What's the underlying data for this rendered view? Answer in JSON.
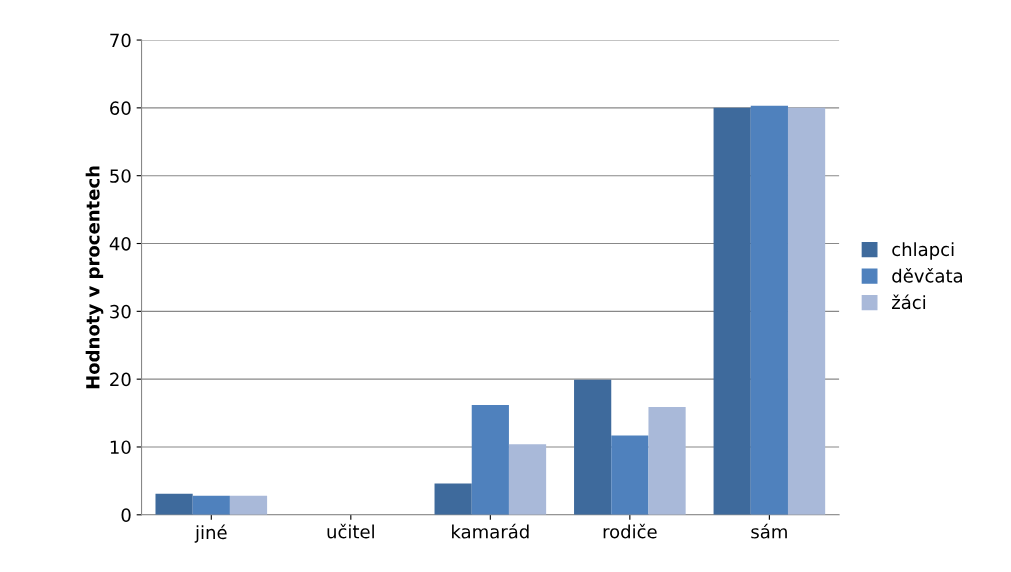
{
  "chart_data": {
    "type": "bar",
    "ylabel": "Hodnoty v procentech",
    "categories": [
      "jiné",
      "učitel",
      "kamarád",
      "rodiče",
      "sám"
    ],
    "series": [
      {
        "name": "chlapci",
        "color": "#3e6a9c",
        "values": [
          3.1,
          0,
          4.6,
          19.9,
          60.0
        ]
      },
      {
        "name": "děvčata",
        "color": "#4f81bd",
        "values": [
          2.8,
          0,
          16.2,
          11.7,
          60.3
        ]
      },
      {
        "name": "žáci",
        "color": "#a9b9d9",
        "values": [
          2.8,
          0,
          10.4,
          15.9,
          60.0
        ]
      }
    ],
    "ylim": [
      0,
      70
    ],
    "yticks": [
      0,
      10,
      20,
      30,
      40,
      50,
      60,
      70
    ],
    "grid": "y",
    "legend": "right"
  }
}
